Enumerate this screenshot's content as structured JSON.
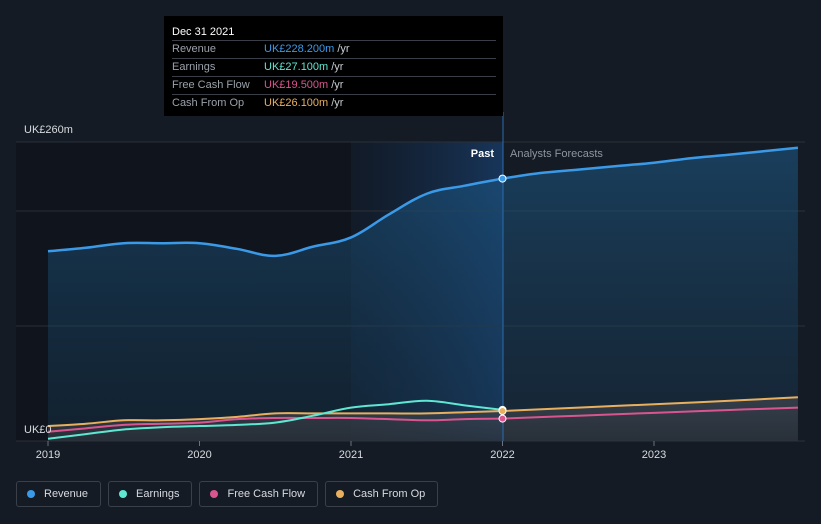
{
  "tooltip": {
    "date": "Dec 31 2021",
    "rows": [
      {
        "label": "Revenue",
        "value": "UK£228.200m",
        "unit": "/yr",
        "color": "#3b9ae8"
      },
      {
        "label": "Earnings",
        "value": "UK£27.100m",
        "unit": "/yr",
        "color": "#5ee8d3"
      },
      {
        "label": "Free Cash Flow",
        "value": "UK£19.500m",
        "unit": "/yr",
        "color": "#d9558f"
      },
      {
        "label": "Cash From Op",
        "value": "UK£26.100m",
        "unit": "/yr",
        "color": "#e8b05e"
      }
    ]
  },
  "legend": [
    {
      "label": "Revenue",
      "color": "#3b9ae8"
    },
    {
      "label": "Earnings",
      "color": "#5ee8d3"
    },
    {
      "label": "Free Cash Flow",
      "color": "#d9558f"
    },
    {
      "label": "Cash From Op",
      "color": "#e8b05e"
    }
  ],
  "chart_data": {
    "type": "line",
    "title": "",
    "xlabel": "",
    "ylabel": "",
    "ylim": [
      0,
      260
    ],
    "xlim": [
      2018.95,
      2023.95
    ],
    "y_tick_labels": {
      "top": "UK£260m",
      "bottom": "UK£0"
    },
    "y_gridlines": [
      0,
      100,
      200,
      260
    ],
    "x_ticks": [
      {
        "value": 2019,
        "label": "2019"
      },
      {
        "value": 2020,
        "label": "2020"
      },
      {
        "value": 2021,
        "label": "2021"
      },
      {
        "value": 2022,
        "label": "2022"
      },
      {
        "value": 2023,
        "label": "2023"
      }
    ],
    "past_label": "Past",
    "forecast_label": "Analysts Forecasts",
    "divider_x": 2022,
    "highlight_start": 2021,
    "series": [
      {
        "name": "Revenue",
        "color": "#3b9ae8",
        "x": [
          2019.0,
          2019.25,
          2019.5,
          2019.75,
          2020.0,
          2020.25,
          2020.5,
          2020.75,
          2021.0,
          2021.25,
          2021.5,
          2021.75,
          2022.0
        ],
        "values": [
          165,
          168,
          172,
          172,
          172,
          167,
          161,
          169,
          177,
          197,
          215,
          222,
          228.2
        ],
        "forecast_x": [
          2022.0,
          2022.25,
          2022.5,
          2022.75,
          2023.0,
          2023.25,
          2023.5,
          2023.95
        ],
        "forecast_values": [
          228.2,
          233,
          236,
          239,
          242,
          246,
          249,
          255
        ]
      },
      {
        "name": "Earnings",
        "color": "#5ee8d3",
        "x": [
          2019.0,
          2019.25,
          2019.5,
          2019.75,
          2020.0,
          2020.25,
          2020.5,
          2020.75,
          2021.0,
          2021.25,
          2021.5,
          2021.75,
          2022.0
        ],
        "values": [
          2,
          6,
          10,
          12,
          13,
          14,
          16,
          22,
          29,
          32,
          35,
          31,
          27.1
        ],
        "forecast_x": [],
        "forecast_values": []
      },
      {
        "name": "Free Cash Flow",
        "color": "#d9558f",
        "x": [
          2019.0,
          2019.25,
          2019.5,
          2019.75,
          2020.0,
          2020.25,
          2020.5,
          2020.75,
          2021.0,
          2021.25,
          2021.5,
          2021.75,
          2022.0
        ],
        "values": [
          8,
          11,
          14,
          15,
          16,
          19,
          20,
          20,
          20,
          19,
          18,
          19,
          19.5
        ],
        "forecast_x": [
          2022.0,
          2022.5,
          2023.0,
          2023.5,
          2023.95
        ],
        "forecast_values": [
          19.5,
          22,
          24.5,
          27,
          29
        ]
      },
      {
        "name": "Cash From Op",
        "color": "#e8b05e",
        "x": [
          2019.0,
          2019.25,
          2019.5,
          2019.75,
          2020.0,
          2020.25,
          2020.5,
          2020.75,
          2021.0,
          2021.25,
          2021.5,
          2021.75,
          2022.0
        ],
        "values": [
          13,
          15,
          18,
          18,
          19,
          21,
          24,
          24,
          24,
          24,
          24,
          25,
          26.1
        ],
        "forecast_x": [
          2022.0,
          2022.5,
          2023.0,
          2023.5,
          2023.95
        ],
        "forecast_values": [
          26.1,
          29,
          32,
          35,
          38
        ]
      }
    ]
  }
}
